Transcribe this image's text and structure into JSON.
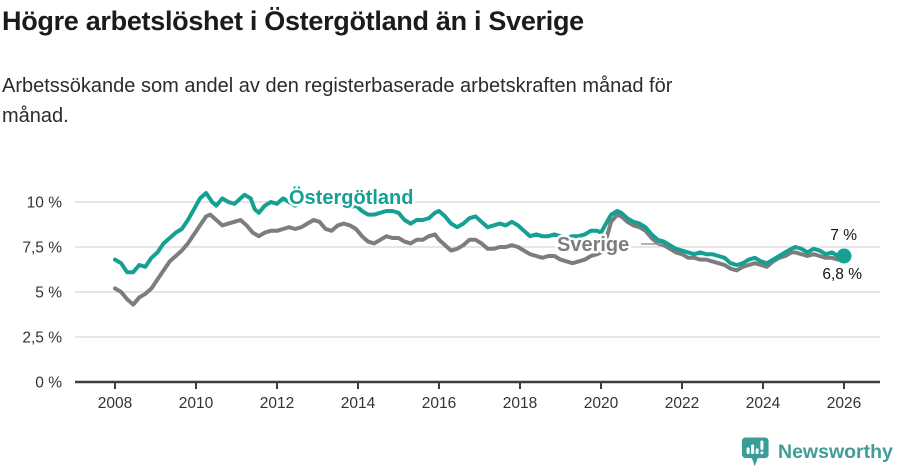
{
  "header": {
    "title": "Högre arbetslöshet i Östergötland än i Sverige",
    "subtitle_line1": "Arbetssökande som andel av den registerbaserade arbetskraften månad för",
    "subtitle_line2": "månad."
  },
  "footer": {
    "brand": "Newsworthy"
  },
  "colors": {
    "accent_teal": "#14a093",
    "series_gray": "#7d7d7d",
    "grid": "#dddddd",
    "axis": "#3b3d40",
    "tick_text": "#333333",
    "end_label_text": "#111111",
    "logo_teal": "#3a9e97"
  },
  "chart_data": {
    "type": "line",
    "title": "Högre arbetslöshet i Östergötland än i Sverige",
    "xlabel": "",
    "ylabel": "",
    "grid": "horizontal",
    "legend_position": "inline-labels",
    "xlim": [
      2007,
      2026.9
    ],
    "ylim": [
      0,
      10.9
    ],
    "y_ticks": [
      {
        "label": "0 %",
        "value": 0
      },
      {
        "label": "2,5 %",
        "value": 2.5
      },
      {
        "label": "5 %",
        "value": 5
      },
      {
        "label": "7,5 %",
        "value": 7.5
      },
      {
        "label": "10 %",
        "value": 10
      }
    ],
    "x_ticks": [
      {
        "label": "2008",
        "value": 2008
      },
      {
        "label": "2010",
        "value": 2010
      },
      {
        "label": "2012",
        "value": 2012
      },
      {
        "label": "2014",
        "value": 2014
      },
      {
        "label": "2016",
        "value": 2016
      },
      {
        "label": "2018",
        "value": 2018
      },
      {
        "label": "2020",
        "value": 2020
      },
      {
        "label": "2022",
        "value": 2022
      },
      {
        "label": "2024",
        "value": 2024
      },
      {
        "label": "2026",
        "value": 2026
      }
    ],
    "series": [
      {
        "name": "Sverige",
        "color": "#7d7d7d",
        "label_color": "#7d7d7d",
        "end_label": "6,8 %",
        "end_value": 6.8,
        "end_dot": false,
        "label_pos": {
          "x": 557,
          "y": 251
        },
        "leader": {
          "x1": 641,
          "x2": 663,
          "y": 244
        },
        "end_label_pos": {
          "x": 862,
          "y": 279
        },
        "points": [
          [
            2008.0,
            5.2
          ],
          [
            2008.15,
            5.0
          ],
          [
            2008.3,
            4.6
          ],
          [
            2008.45,
            4.3
          ],
          [
            2008.6,
            4.7
          ],
          [
            2008.75,
            4.9
          ],
          [
            2008.9,
            5.2
          ],
          [
            2009.05,
            5.7
          ],
          [
            2009.2,
            6.2
          ],
          [
            2009.35,
            6.7
          ],
          [
            2009.5,
            7.0
          ],
          [
            2009.65,
            7.3
          ],
          [
            2009.8,
            7.7
          ],
          [
            2009.95,
            8.2
          ],
          [
            2010.1,
            8.7
          ],
          [
            2010.25,
            9.2
          ],
          [
            2010.35,
            9.3
          ],
          [
            2010.5,
            9.0
          ],
          [
            2010.65,
            8.7
          ],
          [
            2010.8,
            8.8
          ],
          [
            2010.95,
            8.9
          ],
          [
            2011.1,
            9.0
          ],
          [
            2011.25,
            8.7
          ],
          [
            2011.4,
            8.3
          ],
          [
            2011.55,
            8.1
          ],
          [
            2011.7,
            8.3
          ],
          [
            2011.85,
            8.4
          ],
          [
            2012.0,
            8.4
          ],
          [
            2012.15,
            8.5
          ],
          [
            2012.3,
            8.6
          ],
          [
            2012.45,
            8.5
          ],
          [
            2012.6,
            8.6
          ],
          [
            2012.75,
            8.8
          ],
          [
            2012.9,
            9.0
          ],
          [
            2013.05,
            8.9
          ],
          [
            2013.2,
            8.5
          ],
          [
            2013.35,
            8.4
          ],
          [
            2013.5,
            8.7
          ],
          [
            2013.65,
            8.8
          ],
          [
            2013.8,
            8.7
          ],
          [
            2013.95,
            8.5
          ],
          [
            2014.1,
            8.1
          ],
          [
            2014.25,
            7.8
          ],
          [
            2014.4,
            7.7
          ],
          [
            2014.55,
            7.9
          ],
          [
            2014.7,
            8.1
          ],
          [
            2014.85,
            8.0
          ],
          [
            2015.0,
            8.0
          ],
          [
            2015.15,
            7.8
          ],
          [
            2015.3,
            7.7
          ],
          [
            2015.45,
            7.9
          ],
          [
            2015.6,
            7.9
          ],
          [
            2015.75,
            8.1
          ],
          [
            2015.9,
            8.2
          ],
          [
            2016.0,
            7.9
          ],
          [
            2016.15,
            7.6
          ],
          [
            2016.3,
            7.3
          ],
          [
            2016.45,
            7.4
          ],
          [
            2016.6,
            7.6
          ],
          [
            2016.75,
            7.9
          ],
          [
            2016.9,
            7.9
          ],
          [
            2017.05,
            7.7
          ],
          [
            2017.2,
            7.4
          ],
          [
            2017.35,
            7.4
          ],
          [
            2017.5,
            7.5
          ],
          [
            2017.65,
            7.5
          ],
          [
            2017.8,
            7.6
          ],
          [
            2017.95,
            7.5
          ],
          [
            2018.1,
            7.3
          ],
          [
            2018.25,
            7.1
          ],
          [
            2018.4,
            7.0
          ],
          [
            2018.55,
            6.9
          ],
          [
            2018.7,
            7.0
          ],
          [
            2018.85,
            7.0
          ],
          [
            2019.0,
            6.8
          ],
          [
            2019.15,
            6.7
          ],
          [
            2019.3,
            6.6
          ],
          [
            2019.45,
            6.7
          ],
          [
            2019.6,
            6.8
          ],
          [
            2019.75,
            7.0
          ],
          [
            2019.9,
            7.1
          ],
          [
            2020.0,
            7.2
          ],
          [
            2020.1,
            7.7
          ],
          [
            2020.25,
            8.9
          ],
          [
            2020.4,
            9.3
          ],
          [
            2020.5,
            9.2
          ],
          [
            2020.65,
            8.9
          ],
          [
            2020.8,
            8.7
          ],
          [
            2020.95,
            8.6
          ],
          [
            2021.1,
            8.4
          ],
          [
            2021.25,
            8.0
          ],
          [
            2021.4,
            7.7
          ],
          [
            2021.55,
            7.6
          ],
          [
            2021.7,
            7.4
          ],
          [
            2021.85,
            7.2
          ],
          [
            2022.0,
            7.1
          ],
          [
            2022.15,
            6.9
          ],
          [
            2022.3,
            6.9
          ],
          [
            2022.45,
            6.8
          ],
          [
            2022.6,
            6.8
          ],
          [
            2022.75,
            6.7
          ],
          [
            2022.9,
            6.6
          ],
          [
            2023.05,
            6.5
          ],
          [
            2023.2,
            6.3
          ],
          [
            2023.35,
            6.2
          ],
          [
            2023.5,
            6.4
          ],
          [
            2023.65,
            6.5
          ],
          [
            2023.8,
            6.6
          ],
          [
            2023.95,
            6.5
          ],
          [
            2024.1,
            6.4
          ],
          [
            2024.25,
            6.7
          ],
          [
            2024.4,
            6.9
          ],
          [
            2024.55,
            7.0
          ],
          [
            2024.7,
            7.2
          ],
          [
            2024.8,
            7.2
          ],
          [
            2024.95,
            7.1
          ],
          [
            2025.1,
            7.0
          ],
          [
            2025.25,
            7.1
          ],
          [
            2025.4,
            7.0
          ],
          [
            2025.55,
            6.9
          ],
          [
            2025.7,
            6.9
          ],
          [
            2025.85,
            6.8
          ],
          [
            2026.0,
            6.8
          ]
        ]
      },
      {
        "name": "Östergötland",
        "color": "#14a093",
        "label_color": "#14a093",
        "end_label": "7 %",
        "end_value": 7.0,
        "end_dot": true,
        "label_pos": {
          "x": 289,
          "y": 204
        },
        "end_label_pos": {
          "x": 857,
          "y": 240
        },
        "points": [
          [
            2008.0,
            6.8
          ],
          [
            2008.15,
            6.6
          ],
          [
            2008.3,
            6.1
          ],
          [
            2008.45,
            6.1
          ],
          [
            2008.6,
            6.5
          ],
          [
            2008.75,
            6.4
          ],
          [
            2008.9,
            6.9
          ],
          [
            2009.05,
            7.2
          ],
          [
            2009.2,
            7.7
          ],
          [
            2009.35,
            8.0
          ],
          [
            2009.5,
            8.3
          ],
          [
            2009.65,
            8.5
          ],
          [
            2009.8,
            9.0
          ],
          [
            2009.95,
            9.6
          ],
          [
            2010.1,
            10.2
          ],
          [
            2010.25,
            10.5
          ],
          [
            2010.4,
            10.0
          ],
          [
            2010.5,
            9.8
          ],
          [
            2010.65,
            10.2
          ],
          [
            2010.8,
            10.0
          ],
          [
            2010.95,
            9.9
          ],
          [
            2011.1,
            10.2
          ],
          [
            2011.2,
            10.4
          ],
          [
            2011.35,
            10.2
          ],
          [
            2011.45,
            9.6
          ],
          [
            2011.55,
            9.4
          ],
          [
            2011.7,
            9.8
          ],
          [
            2011.85,
            10.0
          ],
          [
            2012.0,
            9.9
          ],
          [
            2012.15,
            10.2
          ],
          [
            2012.3,
            10.0
          ],
          [
            2012.45,
            9.8
          ],
          [
            2012.6,
            10.0
          ],
          [
            2012.75,
            10.1
          ],
          [
            2012.9,
            10.0
          ],
          [
            2013.05,
            10.3
          ],
          [
            2013.2,
            10.1
          ],
          [
            2013.35,
            9.9
          ],
          [
            2013.5,
            10.0
          ],
          [
            2013.65,
            9.9
          ],
          [
            2013.8,
            9.7
          ],
          [
            2013.95,
            9.8
          ],
          [
            2014.1,
            9.5
          ],
          [
            2014.25,
            9.3
          ],
          [
            2014.4,
            9.3
          ],
          [
            2014.55,
            9.4
          ],
          [
            2014.7,
            9.5
          ],
          [
            2014.85,
            9.5
          ],
          [
            2015.0,
            9.4
          ],
          [
            2015.15,
            9.0
          ],
          [
            2015.3,
            8.8
          ],
          [
            2015.45,
            9.0
          ],
          [
            2015.6,
            9.0
          ],
          [
            2015.75,
            9.1
          ],
          [
            2015.9,
            9.4
          ],
          [
            2016.0,
            9.5
          ],
          [
            2016.15,
            9.2
          ],
          [
            2016.3,
            8.8
          ],
          [
            2016.45,
            8.6
          ],
          [
            2016.6,
            8.8
          ],
          [
            2016.75,
            9.1
          ],
          [
            2016.9,
            9.2
          ],
          [
            2017.05,
            8.9
          ],
          [
            2017.2,
            8.6
          ],
          [
            2017.35,
            8.7
          ],
          [
            2017.5,
            8.8
          ],
          [
            2017.65,
            8.7
          ],
          [
            2017.8,
            8.9
          ],
          [
            2017.95,
            8.7
          ],
          [
            2018.1,
            8.4
          ],
          [
            2018.25,
            8.1
          ],
          [
            2018.4,
            8.2
          ],
          [
            2018.55,
            8.1
          ],
          [
            2018.7,
            8.1
          ],
          [
            2018.85,
            8.2
          ],
          [
            2019.0,
            8.1
          ],
          [
            2019.15,
            8.0
          ],
          [
            2019.3,
            8.1
          ],
          [
            2019.45,
            8.1
          ],
          [
            2019.6,
            8.2
          ],
          [
            2019.75,
            8.4
          ],
          [
            2019.9,
            8.4
          ],
          [
            2020.0,
            8.3
          ],
          [
            2020.1,
            8.7
          ],
          [
            2020.25,
            9.3
          ],
          [
            2020.4,
            9.5
          ],
          [
            2020.5,
            9.4
          ],
          [
            2020.65,
            9.1
          ],
          [
            2020.8,
            8.9
          ],
          [
            2020.95,
            8.8
          ],
          [
            2021.1,
            8.6
          ],
          [
            2021.25,
            8.2
          ],
          [
            2021.4,
            7.9
          ],
          [
            2021.55,
            7.8
          ],
          [
            2021.7,
            7.6
          ],
          [
            2021.85,
            7.4
          ],
          [
            2022.0,
            7.3
          ],
          [
            2022.15,
            7.2
          ],
          [
            2022.3,
            7.1
          ],
          [
            2022.45,
            7.2
          ],
          [
            2022.6,
            7.1
          ],
          [
            2022.75,
            7.1
          ],
          [
            2022.9,
            7.0
          ],
          [
            2023.05,
            6.9
          ],
          [
            2023.2,
            6.6
          ],
          [
            2023.35,
            6.5
          ],
          [
            2023.5,
            6.6
          ],
          [
            2023.65,
            6.8
          ],
          [
            2023.8,
            6.9
          ],
          [
            2023.95,
            6.7
          ],
          [
            2024.1,
            6.6
          ],
          [
            2024.25,
            6.8
          ],
          [
            2024.4,
            7.0
          ],
          [
            2024.55,
            7.2
          ],
          [
            2024.7,
            7.4
          ],
          [
            2024.8,
            7.5
          ],
          [
            2024.95,
            7.4
          ],
          [
            2025.1,
            7.2
          ],
          [
            2025.25,
            7.4
          ],
          [
            2025.4,
            7.3
          ],
          [
            2025.55,
            7.1
          ],
          [
            2025.7,
            7.2
          ],
          [
            2025.85,
            7.0
          ],
          [
            2026.0,
            7.0
          ]
        ]
      }
    ]
  }
}
